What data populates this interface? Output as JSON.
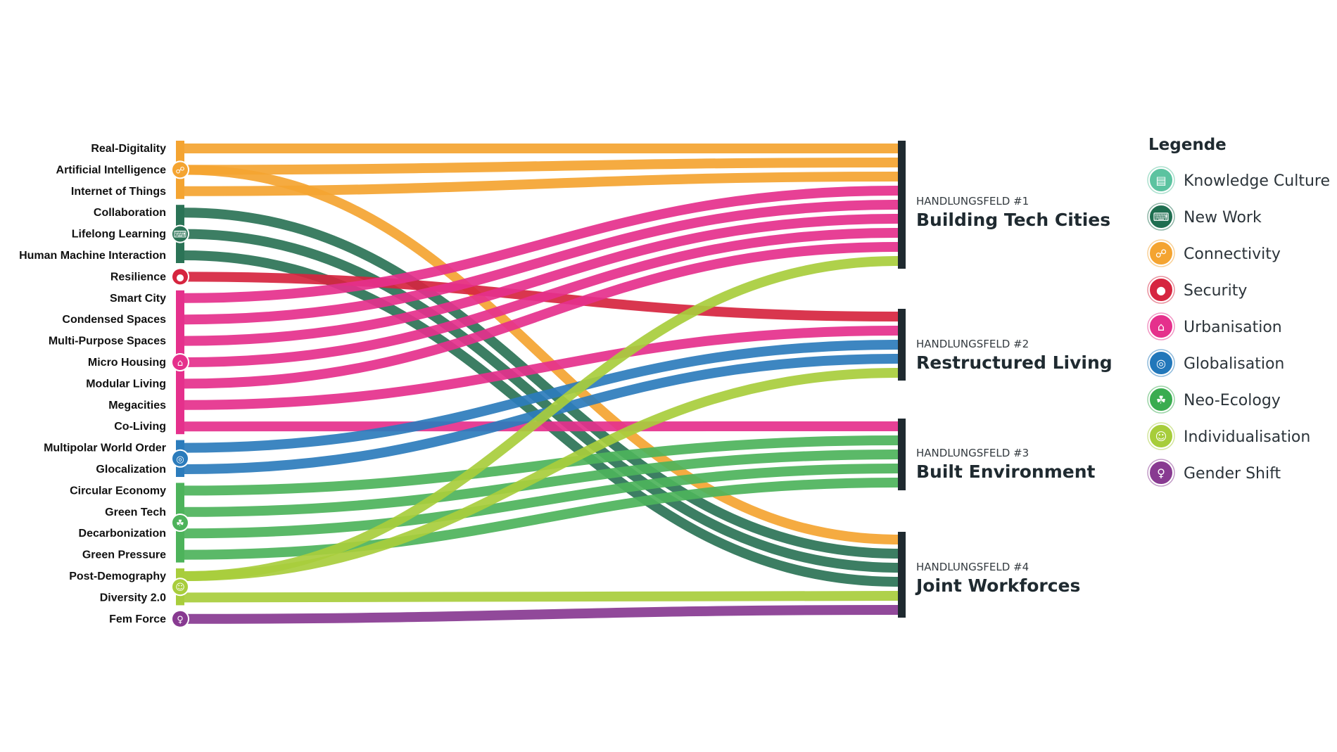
{
  "trends": [
    {
      "label": "Real-Digitality",
      "category": "connectivity",
      "targets": [
        1
      ]
    },
    {
      "label": "Artificial Intelligence",
      "category": "connectivity",
      "targets": [
        1,
        4
      ]
    },
    {
      "label": "Internet of Things",
      "category": "connectivity",
      "targets": [
        1
      ]
    },
    {
      "label": "Collaboration",
      "category": "new-work",
      "targets": [
        4
      ]
    },
    {
      "label": "Lifelong Learning",
      "category": "new-work",
      "targets": [
        4
      ]
    },
    {
      "label": "Human Machine Interaction",
      "category": "new-work",
      "targets": [
        4
      ]
    },
    {
      "label": "Resilience",
      "category": "security",
      "targets": [
        2
      ]
    },
    {
      "label": "Smart City",
      "category": "urbanisation",
      "targets": [
        1
      ]
    },
    {
      "label": "Condensed Spaces",
      "category": "urbanisation",
      "targets": [
        1
      ]
    },
    {
      "label": "Multi-Purpose Spaces",
      "category": "urbanisation",
      "targets": [
        1
      ]
    },
    {
      "label": "Micro Housing",
      "category": "urbanisation",
      "targets": [
        1
      ]
    },
    {
      "label": "Modular Living",
      "category": "urbanisation",
      "targets": [
        1
      ]
    },
    {
      "label": "Megacities",
      "category": "urbanisation",
      "targets": [
        2
      ]
    },
    {
      "label": "Co-Living",
      "category": "urbanisation",
      "targets": [
        3
      ]
    },
    {
      "label": "Multipolar World Order",
      "category": "globalisation",
      "targets": [
        2
      ]
    },
    {
      "label": "Glocalization",
      "category": "globalisation",
      "targets": [
        2
      ]
    },
    {
      "label": "Circular Economy",
      "category": "neo-ecology",
      "targets": [
        3
      ]
    },
    {
      "label": "Green Tech",
      "category": "neo-ecology",
      "targets": [
        3
      ]
    },
    {
      "label": "Decarbonization",
      "category": "neo-ecology",
      "targets": [
        3
      ]
    },
    {
      "label": "Green Pressure",
      "category": "neo-ecology",
      "targets": [
        3
      ]
    },
    {
      "label": "Post-Demography",
      "category": "individualisation",
      "targets": [
        1,
        2
      ]
    },
    {
      "label": "Diversity 2.0",
      "category": "individualisation",
      "targets": [
        4
      ]
    },
    {
      "label": "Fem Force",
      "category": "gender-shift",
      "targets": [
        4
      ]
    }
  ],
  "fields": [
    {
      "id": 1,
      "kicker": "HANDLUNGSFELD #1",
      "title": "Building Tech Cities"
    },
    {
      "id": 2,
      "kicker": "HANDLUNGSFELD #2",
      "title": "Restructured Living"
    },
    {
      "id": 3,
      "kicker": "HANDLUNGSFELD #3",
      "title": "Built Environment"
    },
    {
      "id": 4,
      "kicker": "HANDLUNGSFELD #4",
      "title": "Joint Workforces"
    }
  ],
  "legend": {
    "title": "Legende",
    "items": [
      {
        "key": "knowledge-culture",
        "label": "Knowledge Culture",
        "color": "#5cc3a0",
        "icon": "book-icon"
      },
      {
        "key": "new-work",
        "label": "New Work",
        "color": "#1f6e50",
        "icon": "laptop-icon"
      },
      {
        "key": "connectivity",
        "label": "Connectivity",
        "color": "#f4a431",
        "icon": "network-icon"
      },
      {
        "key": "security",
        "label": "Security",
        "color": "#d6253f",
        "icon": "keyhole-icon"
      },
      {
        "key": "urbanisation",
        "label": "Urbanisation",
        "color": "#e5308c",
        "icon": "building-icon"
      },
      {
        "key": "globalisation",
        "label": "Globalisation",
        "color": "#2277ba",
        "icon": "globe-icon"
      },
      {
        "key": "neo-ecology",
        "label": "Neo-Ecology",
        "color": "#3aac50",
        "icon": "sprout-icon"
      },
      {
        "key": "individualisation",
        "label": "Individualisation",
        "color": "#a7cd3a",
        "icon": "person-icon"
      },
      {
        "key": "gender-shift",
        "label": "Gender Shift",
        "color": "#883a91",
        "icon": "person-dress-icon"
      }
    ]
  },
  "colors": {
    "field_bar": "#1f2a30",
    "connectivity": "#f4a431",
    "new-work": "#2b7356",
    "security": "#d6253f",
    "urbanisation": "#e5308c",
    "globalisation": "#2c7cbc",
    "neo-ecology": "#4db35b",
    "individualisation": "#a8cd3c",
    "gender-shift": "#883a91",
    "knowledge-culture": "#5cc3a0"
  }
}
